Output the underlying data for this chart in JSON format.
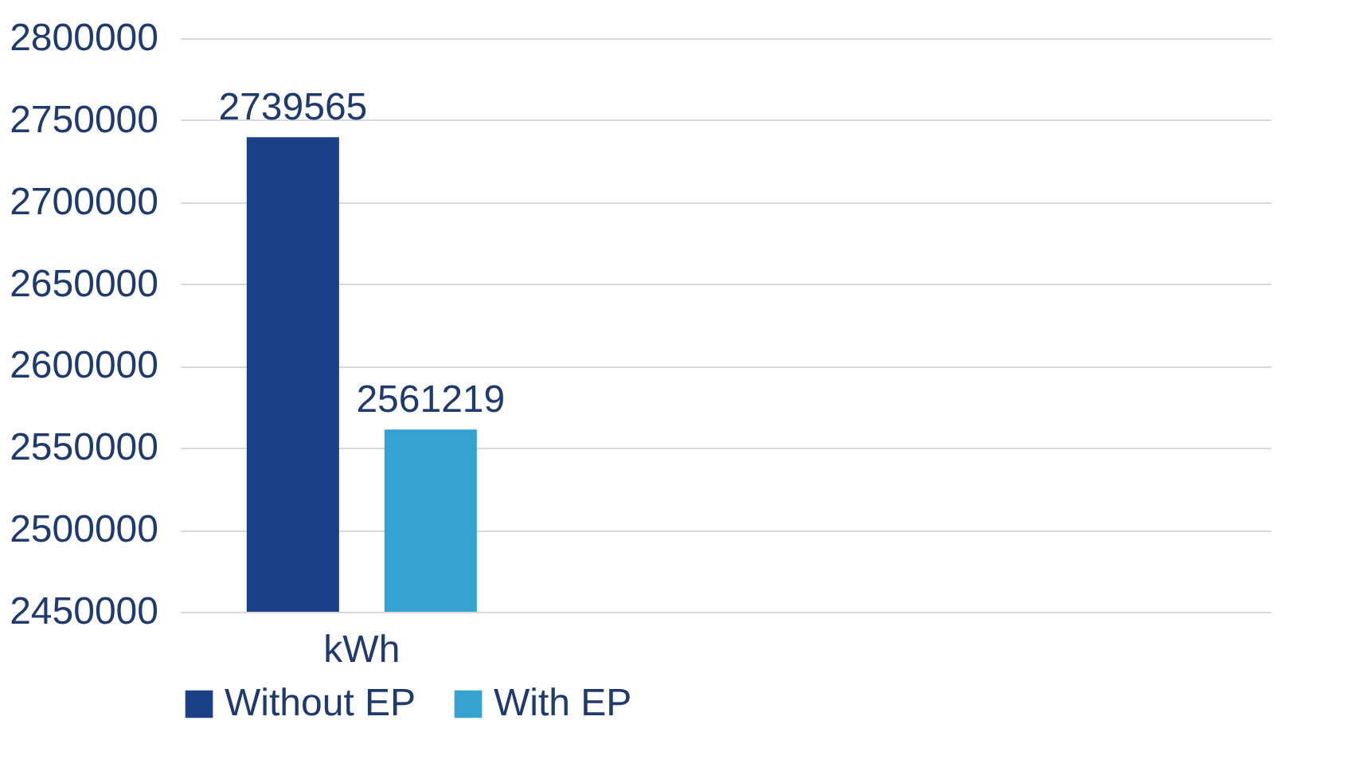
{
  "chart_data": {
    "type": "bar",
    "categories": [
      "kWh"
    ],
    "series": [
      {
        "name": "Without EP",
        "color": "#1a4187",
        "values": [
          2739565
        ]
      },
      {
        "name": "With EP",
        "color": "#36a2d1",
        "values": [
          2561219
        ]
      }
    ],
    "ylim": [
      2450000,
      2800000
    ],
    "yticks": [
      2450000,
      2500000,
      2550000,
      2600000,
      2650000,
      2700000,
      2750000,
      2800000
    ],
    "grid": "y",
    "legend": "bottom",
    "data_labels": true
  }
}
